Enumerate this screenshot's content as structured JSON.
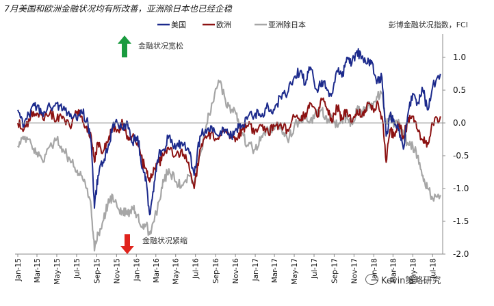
{
  "title": "7月美国和欧洲金融状况均有所改善，亚洲除日本也已经企稳",
  "watermark": "Kevin策略研究",
  "chart_data": {
    "type": "line",
    "title": "7月美国和欧洲金融状况均有所改善，亚洲除日本也已经企稳",
    "ylabel": "彭博金融状况指数，FCI",
    "y_axis_side": "right",
    "ylim": [
      -2.0,
      1.25
    ],
    "yticks": [
      1.0,
      0.5,
      0.0,
      -0.5,
      -1.0,
      -1.5,
      -2.0
    ],
    "ytick_labels": [
      "1.0",
      "0.5",
      "0.0",
      "-0.5",
      "-1.0",
      "-1.5",
      "-2.0"
    ],
    "xlim": [
      "2015-01-01",
      "2018-08-01"
    ],
    "xticks": [
      "2015-01-01",
      "2015-03-01",
      "2015-05-01",
      "2015-07-01",
      "2015-09-01",
      "2015-11-01",
      "2016-01-01",
      "2016-03-01",
      "2016-05-01",
      "2016-07-01",
      "2016-09-01",
      "2016-11-01",
      "2017-01-01",
      "2017-03-01",
      "2017-05-01",
      "2017-07-01",
      "2017-09-01",
      "2017-11-01",
      "2018-01-01",
      "2018-03-01",
      "2018-05-01",
      "2018-07-01"
    ],
    "xtick_labels": [
      "Jan-15",
      "Mar-15",
      "May-15",
      "Jul-15",
      "Sep-15",
      "Nov-15",
      "Jan-16",
      "Mar-16",
      "May-16",
      "Jul-16",
      "Sep-16",
      "Nov-16",
      "Jan-17",
      "Mar-17",
      "May-17",
      "Jul-17",
      "Sep-17",
      "Nov-17",
      "Jan-18",
      "Mar-18",
      "May-18",
      "Jul-18"
    ],
    "zero_line": true,
    "grid": false,
    "legend": "top",
    "annotations": [
      {
        "text": "金融状况宽松",
        "arrow": "up",
        "color": "#1a9b3f"
      },
      {
        "text": "金融状况紧缩",
        "arrow": "down",
        "color": "#e0231c"
      }
    ],
    "series": [
      {
        "name": "美国",
        "color": "#1c2a8c",
        "points": [
          [
            "2015-01-01",
            0.2
          ],
          [
            "2015-01-20",
            -0.05
          ],
          [
            "2015-02-10",
            0.2
          ],
          [
            "2015-03-01",
            0.25
          ],
          [
            "2015-03-20",
            0.1
          ],
          [
            "2015-04-10",
            0.25
          ],
          [
            "2015-05-01",
            0.3
          ],
          [
            "2015-05-20",
            0.2
          ],
          [
            "2015-06-10",
            0.1
          ],
          [
            "2015-07-01",
            0.05
          ],
          [
            "2015-07-15",
            0.2
          ],
          [
            "2015-08-01",
            0.05
          ],
          [
            "2015-08-15",
            -0.3
          ],
          [
            "2015-08-25",
            -1.3
          ],
          [
            "2015-09-05",
            -0.8
          ],
          [
            "2015-09-20",
            -0.6
          ],
          [
            "2015-10-05",
            -0.4
          ],
          [
            "2015-10-20",
            -0.05
          ],
          [
            "2015-11-05",
            0.0
          ],
          [
            "2015-11-20",
            -0.1
          ],
          [
            "2015-12-05",
            0.0
          ],
          [
            "2015-12-20",
            -0.3
          ],
          [
            "2016-01-05",
            -0.2
          ],
          [
            "2016-01-20",
            -0.7
          ],
          [
            "2016-02-01",
            -0.9
          ],
          [
            "2016-02-11",
            -1.4
          ],
          [
            "2016-02-25",
            -0.9
          ],
          [
            "2016-03-10",
            -0.5
          ],
          [
            "2016-03-25",
            -0.4
          ],
          [
            "2016-04-10",
            -0.2
          ],
          [
            "2016-05-01",
            -0.4
          ],
          [
            "2016-05-20",
            -0.3
          ],
          [
            "2016-06-10",
            -0.4
          ],
          [
            "2016-06-27",
            -0.8
          ],
          [
            "2016-07-15",
            -0.2
          ],
          [
            "2016-08-01",
            -0.1
          ],
          [
            "2016-08-20",
            -0.05
          ],
          [
            "2016-09-10",
            -0.2
          ],
          [
            "2016-10-01",
            -0.1
          ],
          [
            "2016-10-20",
            -0.2
          ],
          [
            "2016-11-05",
            -0.1
          ],
          [
            "2016-11-20",
            -0.05
          ],
          [
            "2016-12-10",
            0.1
          ],
          [
            "2017-01-01",
            0.15
          ],
          [
            "2017-01-20",
            0.1
          ],
          [
            "2017-02-10",
            0.25
          ],
          [
            "2017-03-01",
            0.2
          ],
          [
            "2017-03-20",
            0.4
          ],
          [
            "2017-04-10",
            0.45
          ],
          [
            "2017-05-01",
            0.7
          ],
          [
            "2017-05-20",
            0.8
          ],
          [
            "2017-06-05",
            0.6
          ],
          [
            "2017-06-20",
            0.85
          ],
          [
            "2017-07-10",
            0.5
          ],
          [
            "2017-07-25",
            0.65
          ],
          [
            "2017-08-10",
            0.5
          ],
          [
            "2017-08-25",
            0.45
          ],
          [
            "2017-09-10",
            0.8
          ],
          [
            "2017-09-25",
            0.7
          ],
          [
            "2017-10-10",
            1.0
          ],
          [
            "2017-10-25",
            0.9
          ],
          [
            "2017-11-10",
            1.1
          ],
          [
            "2017-11-25",
            1.0
          ],
          [
            "2017-12-10",
            0.9
          ],
          [
            "2017-12-25",
            0.95
          ],
          [
            "2018-01-10",
            0.6
          ],
          [
            "2018-01-26",
            0.7
          ],
          [
            "2018-02-08",
            -0.2
          ],
          [
            "2018-02-20",
            0.1
          ],
          [
            "2018-03-05",
            0.0
          ],
          [
            "2018-03-20",
            -0.1
          ],
          [
            "2018-04-02",
            -0.4
          ],
          [
            "2018-04-15",
            0.1
          ],
          [
            "2018-05-01",
            0.45
          ],
          [
            "2018-05-15",
            0.3
          ],
          [
            "2018-06-01",
            0.5
          ],
          [
            "2018-06-15",
            0.2
          ],
          [
            "2018-07-01",
            0.55
          ],
          [
            "2018-07-25",
            0.75
          ]
        ]
      },
      {
        "name": "欧洲",
        "color": "#8c1212",
        "points": [
          [
            "2015-01-01",
            0.0
          ],
          [
            "2015-01-20",
            -0.1
          ],
          [
            "2015-02-10",
            0.1
          ],
          [
            "2015-03-01",
            0.15
          ],
          [
            "2015-03-20",
            0.05
          ],
          [
            "2015-04-10",
            0.15
          ],
          [
            "2015-05-01",
            0.05
          ],
          [
            "2015-05-20",
            0.1
          ],
          [
            "2015-06-10",
            -0.05
          ],
          [
            "2015-07-01",
            0.15
          ],
          [
            "2015-07-15",
            0.1
          ],
          [
            "2015-08-01",
            -0.05
          ],
          [
            "2015-08-15",
            -0.2
          ],
          [
            "2015-08-25",
            -0.6
          ],
          [
            "2015-09-05",
            -0.3
          ],
          [
            "2015-09-20",
            -0.45
          ],
          [
            "2015-10-05",
            -0.3
          ],
          [
            "2015-10-20",
            -0.05
          ],
          [
            "2015-11-05",
            -0.1
          ],
          [
            "2015-11-20",
            0.0
          ],
          [
            "2015-12-05",
            -0.2
          ],
          [
            "2015-12-20",
            -0.2
          ],
          [
            "2016-01-05",
            -0.3
          ],
          [
            "2016-01-20",
            -0.6
          ],
          [
            "2016-02-01",
            -0.7
          ],
          [
            "2016-02-11",
            -0.9
          ],
          [
            "2016-02-25",
            -0.7
          ],
          [
            "2016-03-10",
            -0.6
          ],
          [
            "2016-03-25",
            -0.5
          ],
          [
            "2016-04-10",
            -0.4
          ],
          [
            "2016-05-01",
            -0.5
          ],
          [
            "2016-05-20",
            -0.4
          ],
          [
            "2016-06-10",
            -0.6
          ],
          [
            "2016-06-27",
            -1.0
          ],
          [
            "2016-07-15",
            -0.4
          ],
          [
            "2016-08-01",
            -0.2
          ],
          [
            "2016-08-20",
            -0.15
          ],
          [
            "2016-09-10",
            -0.25
          ],
          [
            "2016-10-01",
            -0.1
          ],
          [
            "2016-10-20",
            -0.2
          ],
          [
            "2016-11-05",
            -0.25
          ],
          [
            "2016-11-20",
            -0.1
          ],
          [
            "2016-12-10",
            -0.05
          ],
          [
            "2017-01-01",
            -0.1
          ],
          [
            "2017-01-20",
            -0.05
          ],
          [
            "2017-02-10",
            -0.15
          ],
          [
            "2017-03-01",
            -0.05
          ],
          [
            "2017-03-20",
            0.0
          ],
          [
            "2017-04-10",
            -0.1
          ],
          [
            "2017-05-01",
            0.1
          ],
          [
            "2017-05-20",
            0.05
          ],
          [
            "2017-06-05",
            0.15
          ],
          [
            "2017-06-20",
            0.3
          ],
          [
            "2017-07-10",
            0.1
          ],
          [
            "2017-07-25",
            0.35
          ],
          [
            "2017-08-10",
            0.2
          ],
          [
            "2017-08-25",
            0.0
          ],
          [
            "2017-09-10",
            0.25
          ],
          [
            "2017-09-25",
            0.05
          ],
          [
            "2017-10-10",
            0.2
          ],
          [
            "2017-10-25",
            0.0
          ],
          [
            "2017-11-10",
            0.2
          ],
          [
            "2017-11-25",
            0.1
          ],
          [
            "2017-12-10",
            0.25
          ],
          [
            "2017-12-25",
            0.2
          ],
          [
            "2018-01-10",
            0.3
          ],
          [
            "2018-01-26",
            0.1
          ],
          [
            "2018-02-08",
            -0.6
          ],
          [
            "2018-02-20",
            -0.1
          ],
          [
            "2018-03-05",
            -0.2
          ],
          [
            "2018-03-20",
            0.0
          ],
          [
            "2018-04-02",
            -0.2
          ],
          [
            "2018-04-15",
            0.0
          ],
          [
            "2018-05-01",
            0.1
          ],
          [
            "2018-05-15",
            -0.1
          ],
          [
            "2018-06-01",
            -0.25
          ],
          [
            "2018-06-15",
            -0.3
          ],
          [
            "2018-07-01",
            0.0
          ],
          [
            "2018-07-25",
            0.1
          ]
        ]
      },
      {
        "name": "亚洲除日本",
        "color": "#a6a6a6",
        "points": [
          [
            "2015-01-01",
            -0.35
          ],
          [
            "2015-01-20",
            -0.25
          ],
          [
            "2015-02-10",
            -0.3
          ],
          [
            "2015-03-01",
            -0.45
          ],
          [
            "2015-03-20",
            -0.6
          ],
          [
            "2015-04-10",
            -0.35
          ],
          [
            "2015-05-01",
            -0.25
          ],
          [
            "2015-05-20",
            -0.4
          ],
          [
            "2015-06-10",
            -0.55
          ],
          [
            "2015-07-01",
            -0.75
          ],
          [
            "2015-07-15",
            -0.8
          ],
          [
            "2015-08-01",
            -1.0
          ],
          [
            "2015-08-15",
            -1.3
          ],
          [
            "2015-08-25",
            -1.95
          ],
          [
            "2015-09-05",
            -1.7
          ],
          [
            "2015-09-20",
            -1.5
          ],
          [
            "2015-10-05",
            -1.25
          ],
          [
            "2015-10-20",
            -1.1
          ],
          [
            "2015-11-05",
            -1.3
          ],
          [
            "2015-11-20",
            -1.35
          ],
          [
            "2015-12-05",
            -1.4
          ],
          [
            "2015-12-20",
            -1.3
          ],
          [
            "2016-01-05",
            -1.4
          ],
          [
            "2016-01-20",
            -1.6
          ],
          [
            "2016-02-01",
            -1.55
          ],
          [
            "2016-02-11",
            -1.7
          ],
          [
            "2016-02-25",
            -1.5
          ],
          [
            "2016-03-10",
            -1.2
          ],
          [
            "2016-03-25",
            -0.9
          ],
          [
            "2016-04-10",
            -0.7
          ],
          [
            "2016-05-01",
            -0.9
          ],
          [
            "2016-05-20",
            -0.95
          ],
          [
            "2016-06-10",
            -0.8
          ],
          [
            "2016-06-27",
            -0.9
          ],
          [
            "2016-07-15",
            -0.5
          ],
          [
            "2016-08-01",
            -0.1
          ],
          [
            "2016-08-20",
            0.3
          ],
          [
            "2016-09-10",
            0.65
          ],
          [
            "2016-10-01",
            0.35
          ],
          [
            "2016-10-20",
            0.2
          ],
          [
            "2016-11-05",
            0.15
          ],
          [
            "2016-11-20",
            -0.15
          ],
          [
            "2016-12-10",
            -0.35
          ],
          [
            "2017-01-01",
            -0.4
          ],
          [
            "2017-01-20",
            -0.2
          ],
          [
            "2017-02-10",
            -0.1
          ],
          [
            "2017-03-01",
            -0.1
          ],
          [
            "2017-03-20",
            -0.05
          ],
          [
            "2017-04-10",
            -0.25
          ],
          [
            "2017-05-01",
            -0.05
          ],
          [
            "2017-05-20",
            0.05
          ],
          [
            "2017-06-05",
            0.1
          ],
          [
            "2017-06-20",
            0.05
          ],
          [
            "2017-07-10",
            0.15
          ],
          [
            "2017-07-25",
            0.2
          ],
          [
            "2017-08-10",
            0.0
          ],
          [
            "2017-08-25",
            0.1
          ],
          [
            "2017-09-10",
            -0.05
          ],
          [
            "2017-09-25",
            0.05
          ],
          [
            "2017-10-10",
            0.1
          ],
          [
            "2017-10-25",
            0.0
          ],
          [
            "2017-11-10",
            0.2
          ],
          [
            "2017-11-25",
            0.15
          ],
          [
            "2017-12-10",
            0.25
          ],
          [
            "2017-12-25",
            0.3
          ],
          [
            "2018-01-10",
            0.4
          ],
          [
            "2018-01-26",
            0.45
          ],
          [
            "2018-02-08",
            0.0
          ],
          [
            "2018-02-20",
            0.15
          ],
          [
            "2018-03-05",
            -0.05
          ],
          [
            "2018-03-20",
            0.0
          ],
          [
            "2018-04-02",
            -0.2
          ],
          [
            "2018-04-15",
            -0.3
          ],
          [
            "2018-05-01",
            -0.35
          ],
          [
            "2018-05-15",
            -0.5
          ],
          [
            "2018-06-01",
            -0.8
          ],
          [
            "2018-06-15",
            -1.0
          ],
          [
            "2018-07-01",
            -1.15
          ],
          [
            "2018-07-25",
            -1.1
          ]
        ]
      }
    ]
  }
}
